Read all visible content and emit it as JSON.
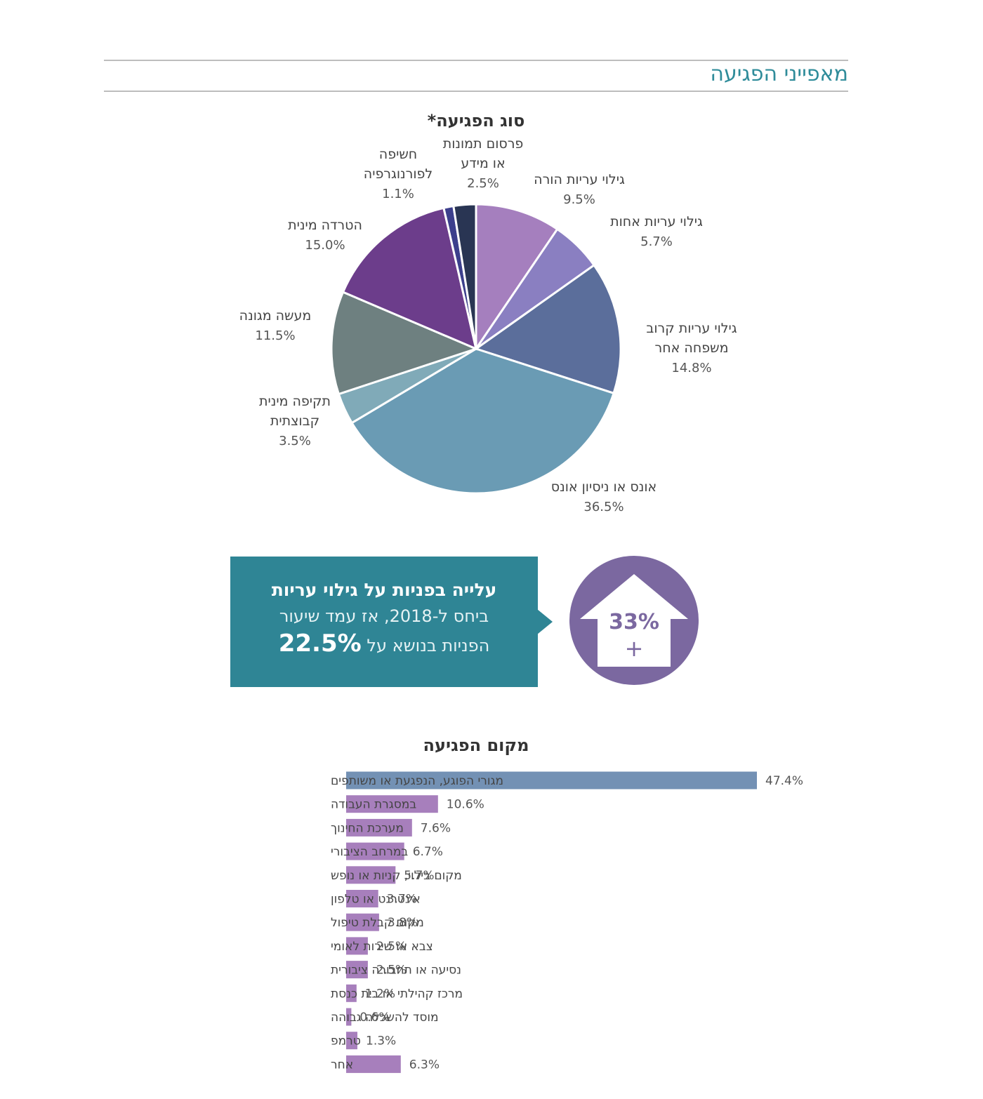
{
  "section_title": "מאפייני הפגיעה",
  "colors": {
    "accent": "#2f8c9a",
    "callout_bg": "#2f8595",
    "badge": "#7b68a0",
    "bar_main": "#7391b4",
    "bar_other": "#a77fbc"
  },
  "chart_data": [
    {
      "type": "pie",
      "title": "סוג הפגיעה*",
      "slices": [
        {
          "label": "גילוי עריות הורה",
          "value": 9.5,
          "value_label": "9.5%",
          "color": "#a57fbe"
        },
        {
          "label": "גילוי עריות אחות",
          "value": 5.7,
          "value_label": "5.7%",
          "color": "#8a7fc1"
        },
        {
          "label": "גילוי עריות קרוב משפחה אחר",
          "value": 14.8,
          "value_label": "14.8%",
          "color": "#5b6e9b"
        },
        {
          "label": "אונס או ניסיון אונס",
          "value": 36.5,
          "value_label": "36.5%",
          "color": "#6a9bb4"
        },
        {
          "label": "תקיפה מינית קבוצתית",
          "value": 3.5,
          "value_label": "3.5%",
          "color": "#80aab8"
        },
        {
          "label": "מעשה מגונה",
          "value": 11.5,
          "value_label": "11.5%",
          "color": "#6e8080"
        },
        {
          "label": "הטרדה מינית",
          "value": 15.0,
          "value_label": "15.0%",
          "color": "#6c3d8b"
        },
        {
          "label": "חשיפה לפורנוגרפיה",
          "value": 1.1,
          "value_label": "1.1%",
          "color": "#3c3f8c"
        },
        {
          "label": "פרסום תמונות או מידע",
          "value": 2.5,
          "value_label": "2.5%",
          "color": "#293553"
        }
      ]
    },
    {
      "type": "bar",
      "orientation": "horizontal",
      "title": "מקום הפגיעה",
      "categories": [
        "מגורי הפוגע, הנפגעת או משותפים",
        "במסגרת העבודה",
        "מערכת החינוך",
        "במרחב הציבורי",
        "מקום בילוי, קניות או נופש",
        "אינטרנט או טלפון",
        "מקום קבלת טיפול",
        "צבא או שירות לאומי",
        "נסיעה או תחבורה ציבורית",
        "מרכז קהילתי או בית כנסת",
        "מוסד להשכלה גבוהה",
        "טרמפ",
        "אחר"
      ],
      "values": [
        47.4,
        10.6,
        7.6,
        6.7,
        5.7,
        3.7,
        3.8,
        2.5,
        2.5,
        1.2,
        0.6,
        1.3,
        6.3
      ],
      "value_labels": [
        "47.4%",
        "10.6%",
        "7.6%",
        "6.7%",
        "5.7%",
        "3.7%",
        "3.8%",
        "2.5%",
        "2.5%",
        "1.2%",
        "0.6%",
        "1.3%",
        "6.3%"
      ],
      "xlim": [
        0,
        47.4
      ]
    }
  ],
  "callout": {
    "line1": "עלייה בפניות על גילוי עריות",
    "line2": "ביחס ל-2018, אז עמד שיעור",
    "line3": "הפניות בנושא על",
    "big_value": "22.5%"
  },
  "badge": {
    "value": "33%",
    "sign": "+"
  }
}
